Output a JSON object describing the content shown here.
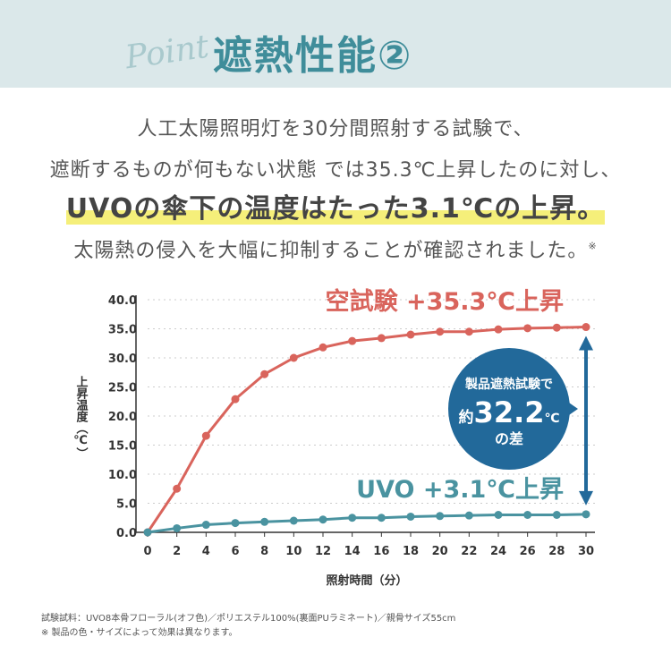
{
  "header": {
    "script_label": "Point",
    "title": "遮熱性能②"
  },
  "body": {
    "line1": "人工太陽照明灯を30分間照射する試験で、",
    "line2": "遮断するものが何もない状態 では35.3℃上昇したのに対し、",
    "line3": "UVOの傘下の温度はたった3.1℃の上昇。",
    "line4": "太陽熱の侵入を大幅に抑制することが確認されました。",
    "line4_mark": "※"
  },
  "chart_data": {
    "type": "line",
    "xlabel": "照射時間（分）",
    "ylabel": "上昇温度（℃）",
    "x": [
      0,
      2,
      4,
      6,
      8,
      10,
      12,
      14,
      16,
      18,
      20,
      22,
      24,
      26,
      28,
      30
    ],
    "xticks": [
      "0",
      "2",
      "4",
      "6",
      "8",
      "10",
      "12",
      "14",
      "16",
      "18",
      "20",
      "22",
      "24",
      "26",
      "28",
      "30"
    ],
    "yticks": [
      "0.0",
      "5.0",
      "10.0",
      "15.0",
      "20.0",
      "25.0",
      "30.0",
      "35.0",
      "40.0"
    ],
    "xlim": [
      0,
      30
    ],
    "ylim": [
      0,
      40
    ],
    "grid": "horizontal dotted",
    "series": [
      {
        "name": "空試験 +35.3℃上昇",
        "color": "#d9645c",
        "values": [
          0,
          7.5,
          16.6,
          22.9,
          27.2,
          30.0,
          31.8,
          32.9,
          33.4,
          34.0,
          34.5,
          34.5,
          34.9,
          35.1,
          35.2,
          35.3
        ]
      },
      {
        "name": "UVO +3.1℃上昇",
        "color": "#4a93a0",
        "values": [
          0,
          0.7,
          1.3,
          1.6,
          1.8,
          2.0,
          2.2,
          2.5,
          2.5,
          2.7,
          2.8,
          2.9,
          3.0,
          3.0,
          3.0,
          3.1
        ]
      }
    ],
    "annotation": {
      "line1": "製品遮熱試験で",
      "prefix": "約",
      "value": "32.2",
      "unit": "℃",
      "suffix": "の差",
      "color": "#22699a"
    }
  },
  "footnotes": [
    "試験試料：UVO8本骨フローラル(オフ色)／ポリエステル100%(裏面PUラミネート)／親骨サイズ55cm",
    "※ 製品の色・サイズによって効果は異なります。"
  ]
}
